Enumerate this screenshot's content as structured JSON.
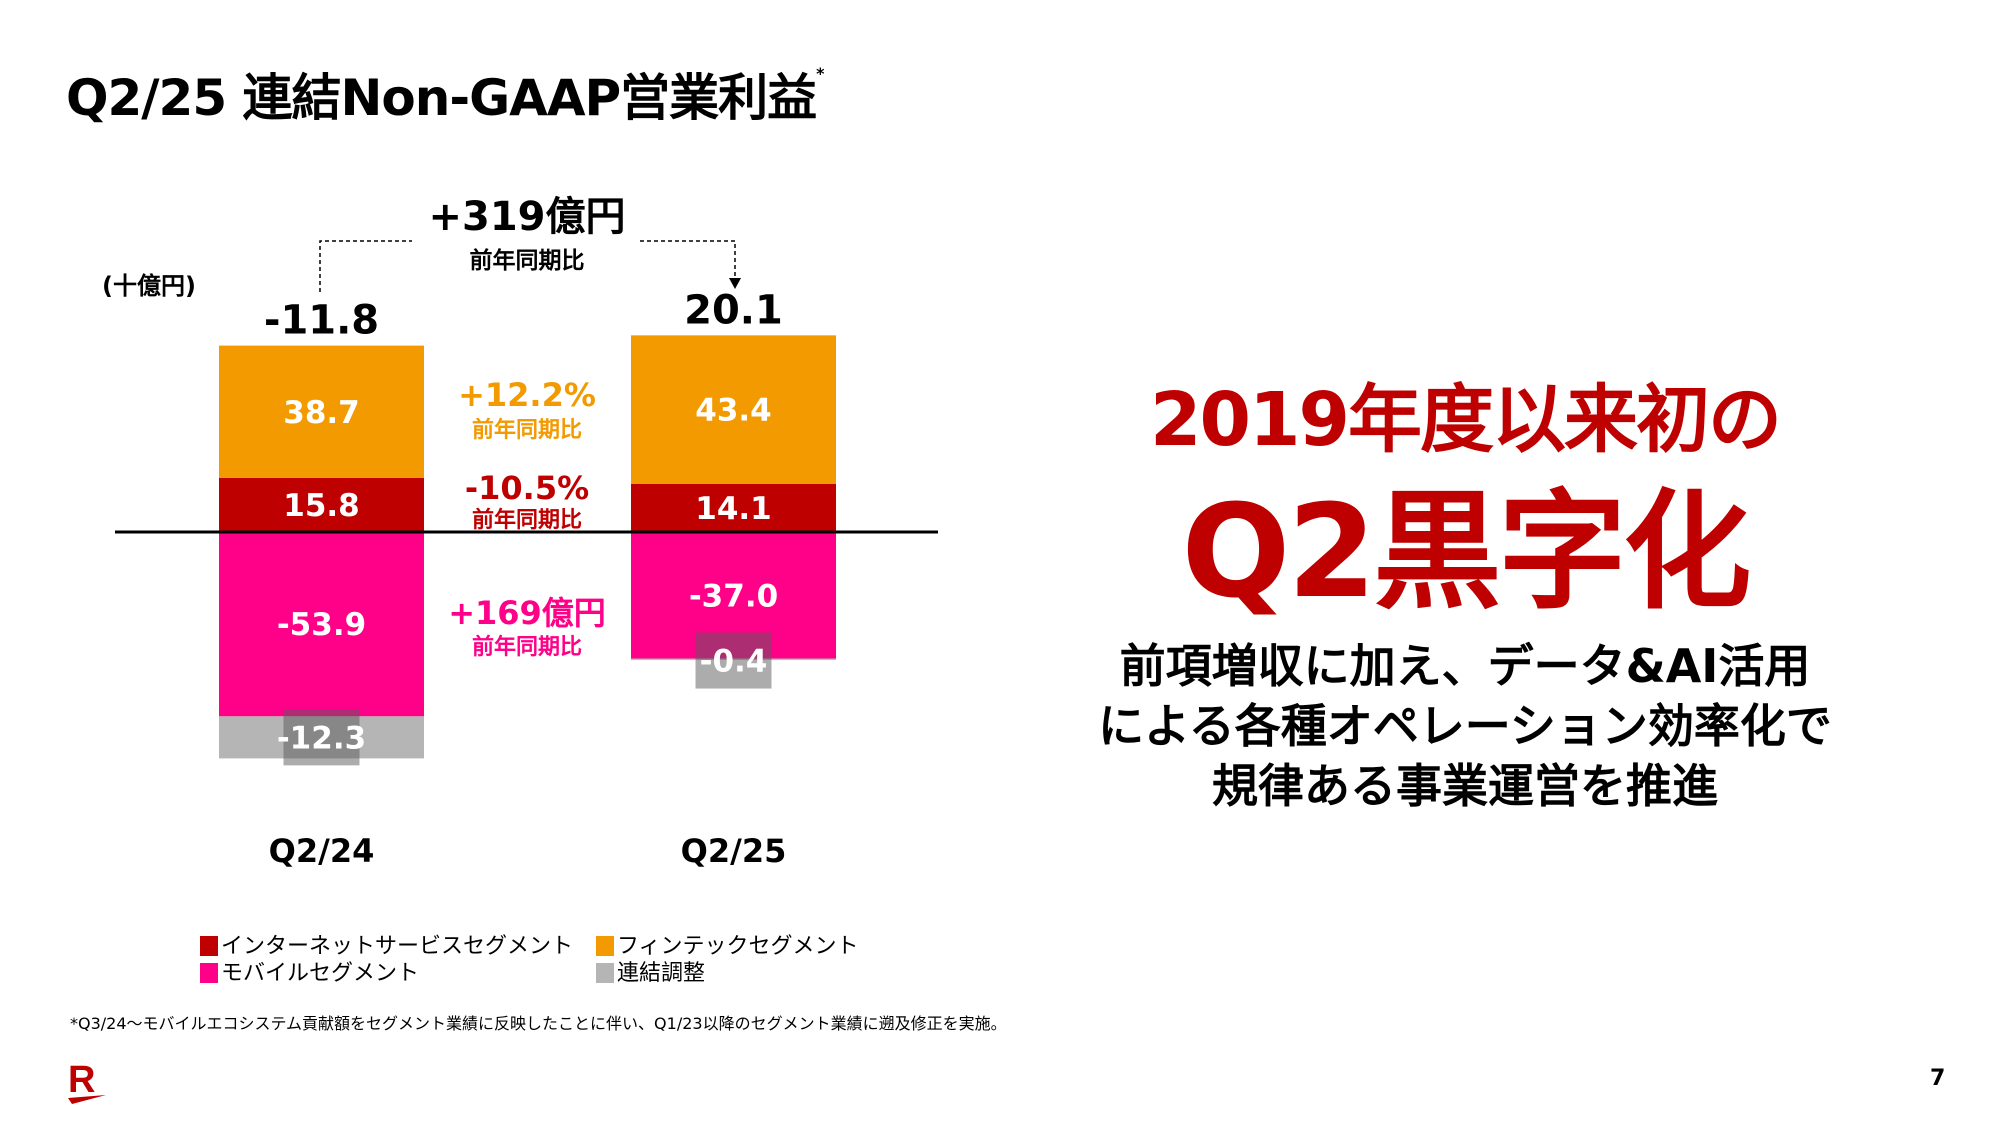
{
  "title": "Q2/25 連結Non-GAAP営業利益",
  "title_mark": "*",
  "chart_data": {
    "type": "bar",
    "stacked": true,
    "unit_label": "(十億円)",
    "categories": [
      "Q2/24",
      "Q2/25"
    ],
    "totals": [
      "-11.8",
      "20.1"
    ],
    "series": [
      {
        "name": "インターネットサービスセグメント",
        "color": "#BF0000",
        "values": [
          15.8,
          14.1
        ]
      },
      {
        "name": "フィンテックセグメント",
        "color": "#F29A00",
        "values": [
          38.7,
          43.4
        ]
      },
      {
        "name": "モバイルセグメント",
        "color": "#FF0088",
        "values": [
          -53.9,
          -37.0
        ]
      },
      {
        "name": "連結調整",
        "color": "#B5B5B5",
        "values": [
          -12.3,
          -0.4
        ]
      }
    ],
    "annotations": {
      "total_change": {
        "value": "+319億円",
        "label": "前年同期比"
      },
      "fintech_change": {
        "value": "+12.2%",
        "label": "前年同期比",
        "color": "#F29A00"
      },
      "internet_change": {
        "value": "-10.5%",
        "label": "前年同期比",
        "color": "#BF0000"
      },
      "mobile_change": {
        "value": "+169億円",
        "label": "前年同期比",
        "color": "#FF0088"
      }
    },
    "legend_position": "bottom",
    "grid": false
  },
  "message": {
    "line1": "2019年度以来初の",
    "line2": "Q2黒字化",
    "body": [
      "前項増収に加え、データ&AI活用",
      "による各種オペレーション効率化で",
      "規律ある事業運営を推進"
    ]
  },
  "footnote": "*Q3/24～モバイルエコシステム貢献額をセグメント業績に反映したことに伴い、Q1/23以降のセグメント業績に遡及修正を実施。",
  "logo_letter": "R",
  "page_number": "7"
}
